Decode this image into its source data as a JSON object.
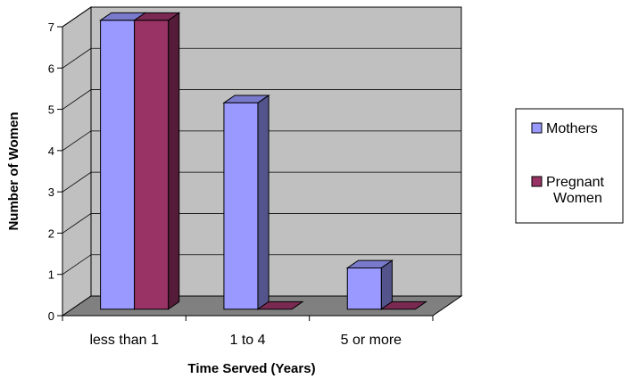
{
  "chart_data": {
    "type": "bar",
    "categories": [
      "less than 1",
      "1 to 4",
      "5 or more"
    ],
    "series": [
      {
        "name": "Mothers",
        "values": [
          7,
          5,
          1
        ],
        "color": "#9999ff"
      },
      {
        "name": "Pregnant Women",
        "legend_lines": [
          "Pregnant",
          "Women"
        ],
        "values": [
          7,
          0,
          0
        ],
        "color": "#993366"
      }
    ],
    "xlabel": "Time Served (Years)",
    "ylabel": "Number of Women",
    "ylim": [
      0,
      7
    ],
    "yticks": [
      0,
      1,
      2,
      3,
      4,
      5,
      6,
      7
    ],
    "grid": true,
    "three_d": true,
    "legend_position": "right",
    "colors": {
      "wall": "#c0c0c0",
      "floor": "#808080",
      "gridline": "#000000"
    }
  }
}
